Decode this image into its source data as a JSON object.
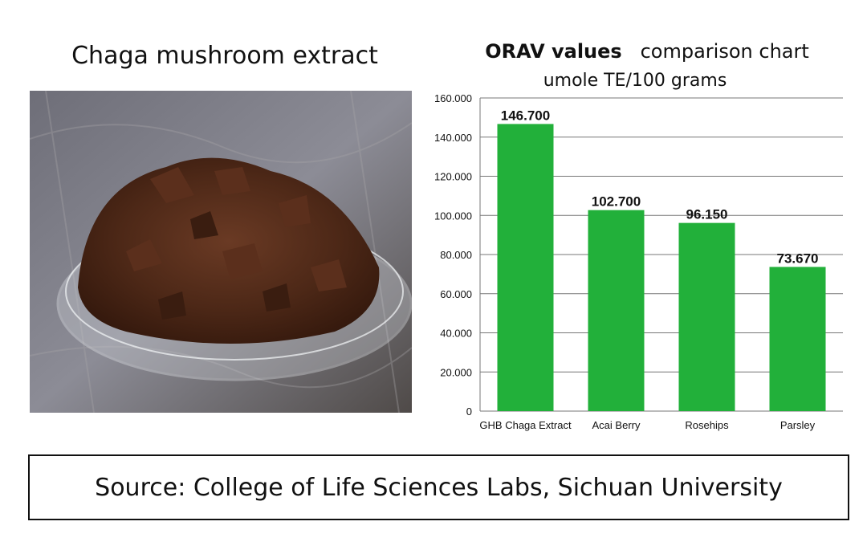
{
  "left_panel": {
    "title": "Chaga mushroom extract"
  },
  "right_panel": {
    "title_bold": "ORAV values",
    "title_rest": "comparison chart",
    "subtitle": "umole TE/100 grams"
  },
  "chart_data": {
    "type": "bar",
    "categories": [
      "GHB Chaga Extract",
      "Acai Berry",
      "Rosehips",
      "Parsley"
    ],
    "values": [
      146.7,
      102.7,
      96.15,
      73.67
    ],
    "data_labels": [
      "146.700",
      "102.700",
      "96.150",
      "73.670"
    ],
    "y_ticks": [
      "0",
      "20.000",
      "40.000",
      "60.000",
      "80.000",
      "100.000",
      "120.000",
      "140.000",
      "160.000"
    ],
    "ylim": [
      0,
      160
    ],
    "grid": true,
    "bar_color": "#22b03a"
  },
  "footer": {
    "source": "Source: College of Life Sciences Labs, Sichuan University"
  }
}
